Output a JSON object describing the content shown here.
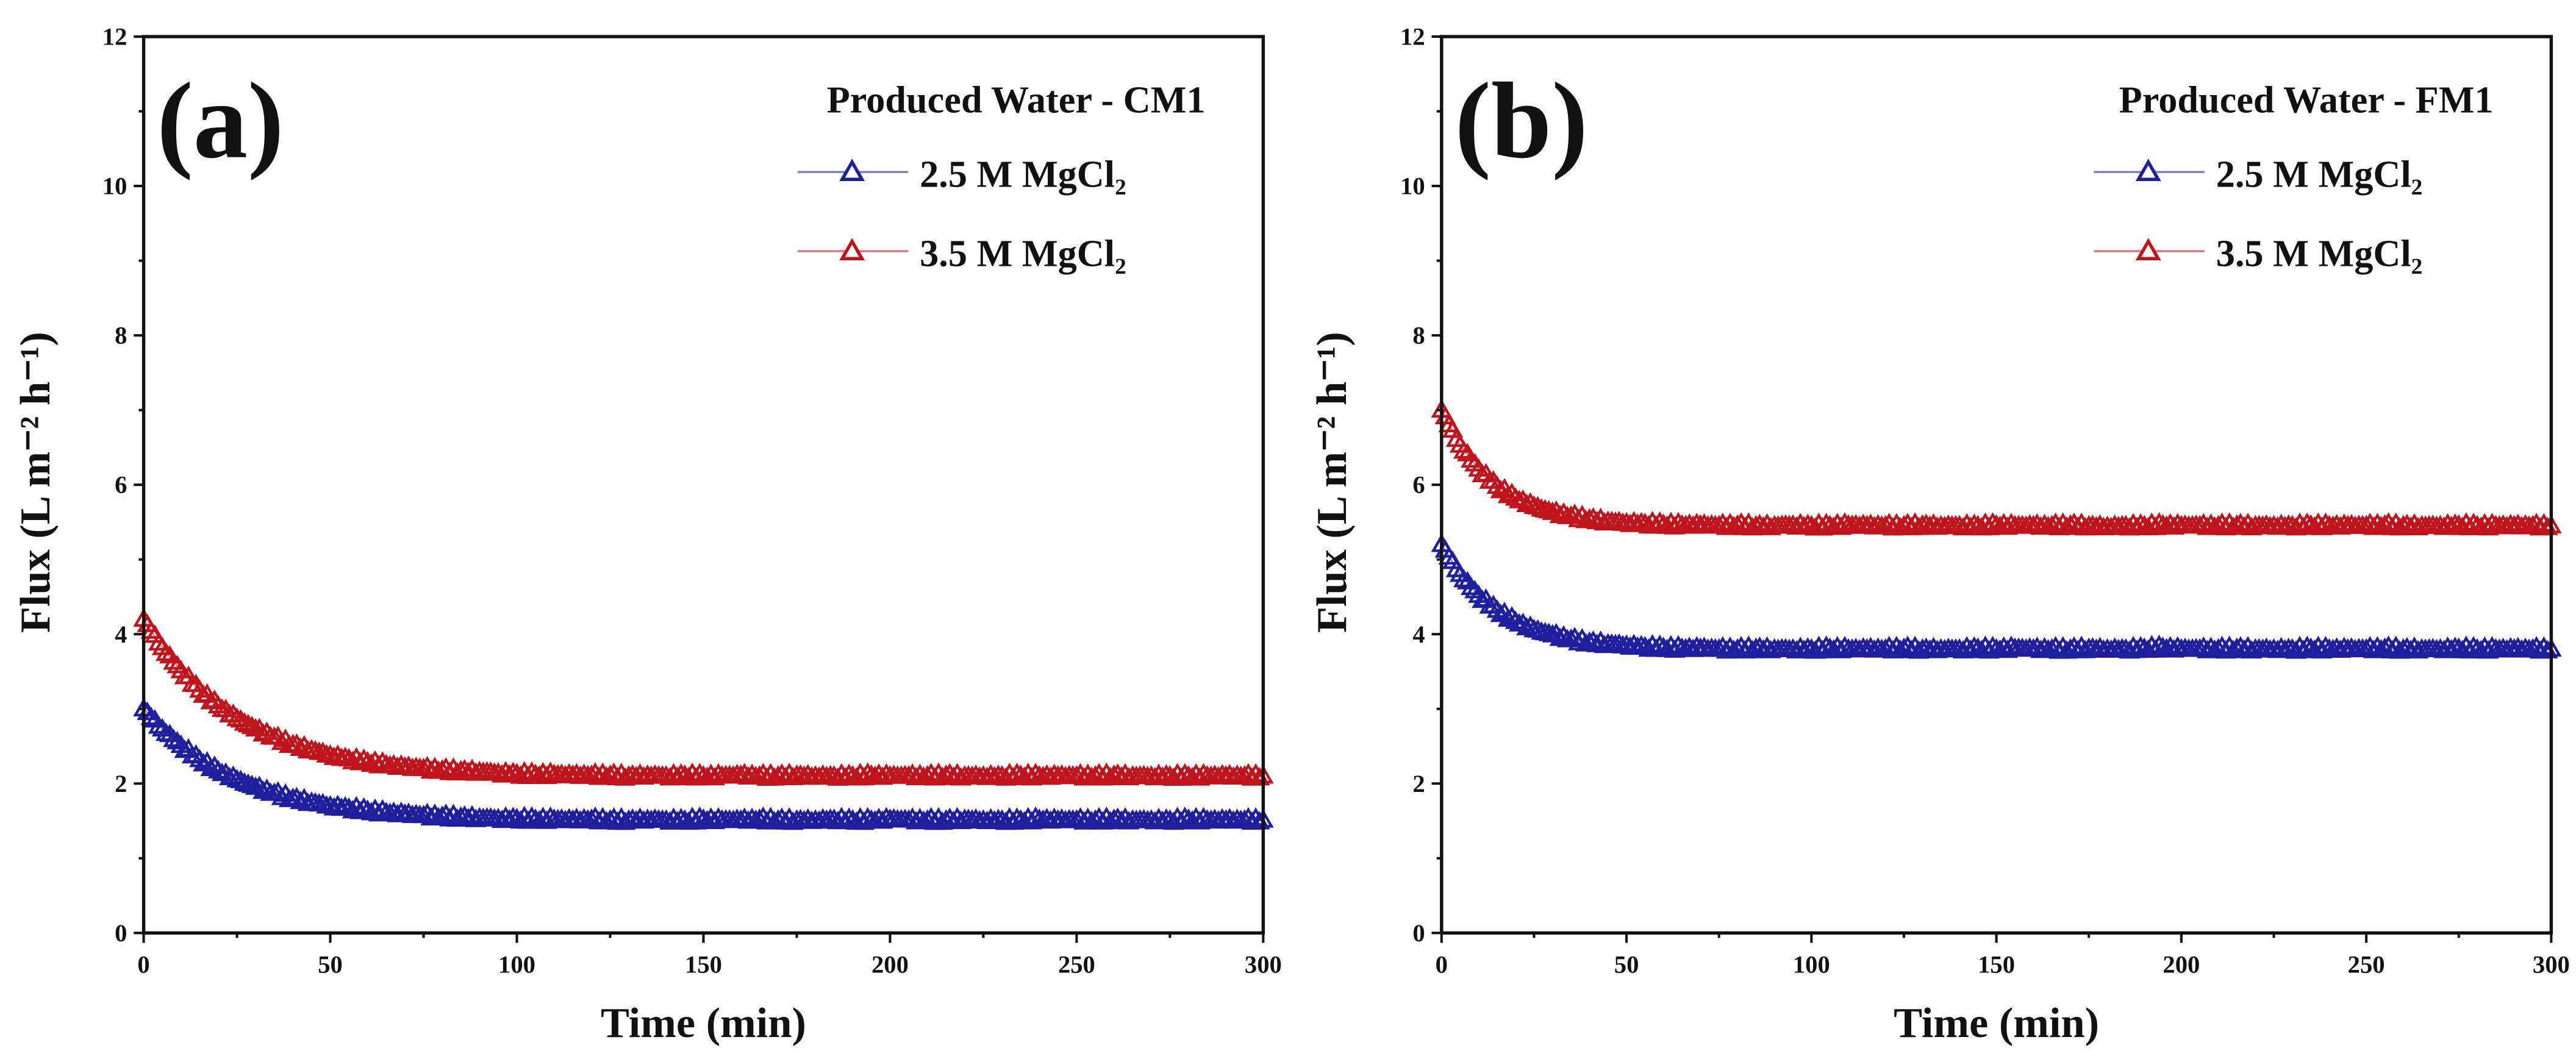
{
  "chart_data": [
    {
      "type": "scatter",
      "panel_label": "(a)",
      "title": "Produced Water - CM1",
      "xlabel": "Time (min)",
      "ylabel": "Flux (L m⁻² h⁻¹)",
      "xlim": [
        0,
        300
      ],
      "ylim": [
        0,
        12
      ],
      "xticks": [
        "0",
        "50",
        "100",
        "150",
        "200",
        "250",
        "300"
      ],
      "yticks": [
        "0",
        "2",
        "4",
        "6",
        "8",
        "10",
        "12"
      ],
      "grid": false,
      "legend_position": "top-right",
      "x": [
        0,
        5,
        10,
        15,
        20,
        25,
        30,
        35,
        40,
        45,
        50,
        55,
        60,
        65,
        70,
        75,
        80,
        85,
        90,
        95,
        100,
        105,
        110,
        115,
        120,
        125,
        130,
        135,
        140,
        145,
        150,
        155,
        160,
        165,
        170,
        175,
        180,
        185,
        190,
        195,
        200,
        205,
        210,
        215,
        220,
        225,
        230,
        235,
        240,
        245,
        250,
        255,
        260,
        265,
        270,
        275,
        280,
        285,
        290,
        295,
        300
      ],
      "series": [
        {
          "name": "2.5 M MgCl₂",
          "color": "#1f1f9e",
          "values": [
            3.0,
            2.73,
            2.51,
            2.32,
            2.17,
            2.05,
            1.95,
            1.87,
            1.8,
            1.75,
            1.7,
            1.67,
            1.64,
            1.61,
            1.59,
            1.57,
            1.56,
            1.55,
            1.54,
            1.53,
            1.53,
            1.52,
            1.52,
            1.51,
            1.52,
            1.51,
            1.51,
            1.52,
            1.51,
            1.51,
            1.52,
            1.51,
            1.51,
            1.52,
            1.51,
            1.51,
            1.51,
            1.52,
            1.51,
            1.51,
            1.52,
            1.51,
            1.51,
            1.51,
            1.52,
            1.51,
            1.51,
            1.51,
            1.52,
            1.51,
            1.51,
            1.51,
            1.52,
            1.51,
            1.51,
            1.51,
            1.52,
            1.51,
            1.51,
            1.51,
            1.51
          ]
        },
        {
          "name": "3.5 M MgCl₂",
          "color": "#c0141c",
          "values": [
            4.2,
            3.82,
            3.51,
            3.25,
            3.04,
            2.87,
            2.73,
            2.62,
            2.52,
            2.45,
            2.38,
            2.33,
            2.29,
            2.25,
            2.22,
            2.2,
            2.18,
            2.17,
            2.16,
            2.14,
            2.13,
            2.12,
            2.12,
            2.11,
            2.11,
            2.11,
            2.1,
            2.11,
            2.1,
            2.11,
            2.1,
            2.1,
            2.11,
            2.1,
            2.1,
            2.11,
            2.1,
            2.1,
            2.1,
            2.11,
            2.1,
            2.1,
            2.1,
            2.11,
            2.1,
            2.1,
            2.1,
            2.11,
            2.1,
            2.1,
            2.1,
            2.1,
            2.11,
            2.1,
            2.1,
            2.1,
            2.1,
            2.1,
            2.1,
            2.1,
            2.1
          ]
        }
      ]
    },
    {
      "type": "scatter",
      "panel_label": "(b)",
      "title": "Produced Water - FM1",
      "xlabel": "Time (min)",
      "ylabel": "Flux (L m⁻² h⁻¹)",
      "xlim": [
        0,
        300
      ],
      "ylim": [
        0,
        12
      ],
      "xticks": [
        "0",
        "50",
        "100",
        "150",
        "200",
        "250",
        "300"
      ],
      "yticks": [
        "0",
        "2",
        "4",
        "6",
        "8",
        "10",
        "12"
      ],
      "grid": false,
      "legend_position": "top-right",
      "x": [
        0,
        5,
        10,
        15,
        20,
        25,
        30,
        35,
        40,
        45,
        50,
        55,
        60,
        65,
        70,
        75,
        80,
        85,
        90,
        95,
        100,
        105,
        110,
        115,
        120,
        125,
        130,
        135,
        140,
        145,
        150,
        155,
        160,
        165,
        170,
        175,
        180,
        185,
        190,
        195,
        200,
        205,
        210,
        215,
        220,
        225,
        230,
        235,
        240,
        245,
        250,
        255,
        260,
        265,
        270,
        275,
        280,
        285,
        290,
        295,
        300
      ],
      "series": [
        {
          "name": "2.5 M MgCl₂",
          "color": "#1f1f9e",
          "values": [
            5.2,
            4.8,
            4.52,
            4.32,
            4.17,
            4.06,
            3.99,
            3.93,
            3.89,
            3.87,
            3.85,
            3.83,
            3.82,
            3.81,
            3.81,
            3.8,
            3.8,
            3.81,
            3.8,
            3.8,
            3.8,
            3.81,
            3.8,
            3.8,
            3.8,
            3.81,
            3.8,
            3.8,
            3.8,
            3.81,
            3.8,
            3.81,
            3.8,
            3.8,
            3.8,
            3.81,
            3.8,
            3.8,
            3.81,
            3.82,
            3.8,
            3.8,
            3.8,
            3.81,
            3.8,
            3.8,
            3.8,
            3.81,
            3.8,
            3.8,
            3.8,
            3.81,
            3.8,
            3.8,
            3.8,
            3.81,
            3.8,
            3.8,
            3.8,
            3.8,
            3.8
          ]
        },
        {
          "name": "3.5 M MgCl₂",
          "color": "#c0141c",
          "values": [
            7.0,
            6.53,
            6.21,
            5.98,
            5.82,
            5.71,
            5.63,
            5.58,
            5.54,
            5.51,
            5.49,
            5.48,
            5.47,
            5.46,
            5.46,
            5.45,
            5.46,
            5.45,
            5.45,
            5.46,
            5.45,
            5.45,
            5.46,
            5.45,
            5.45,
            5.45,
            5.46,
            5.45,
            5.45,
            5.45,
            5.46,
            5.45,
            5.45,
            5.45,
            5.46,
            5.45,
            5.44,
            5.45,
            5.45,
            5.46,
            5.45,
            5.45,
            5.45,
            5.46,
            5.45,
            5.45,
            5.45,
            5.46,
            5.45,
            5.45,
            5.45,
            5.46,
            5.45,
            5.45,
            5.45,
            5.46,
            5.45,
            5.45,
            5.45,
            5.45,
            5.45
          ]
        }
      ]
    }
  ]
}
